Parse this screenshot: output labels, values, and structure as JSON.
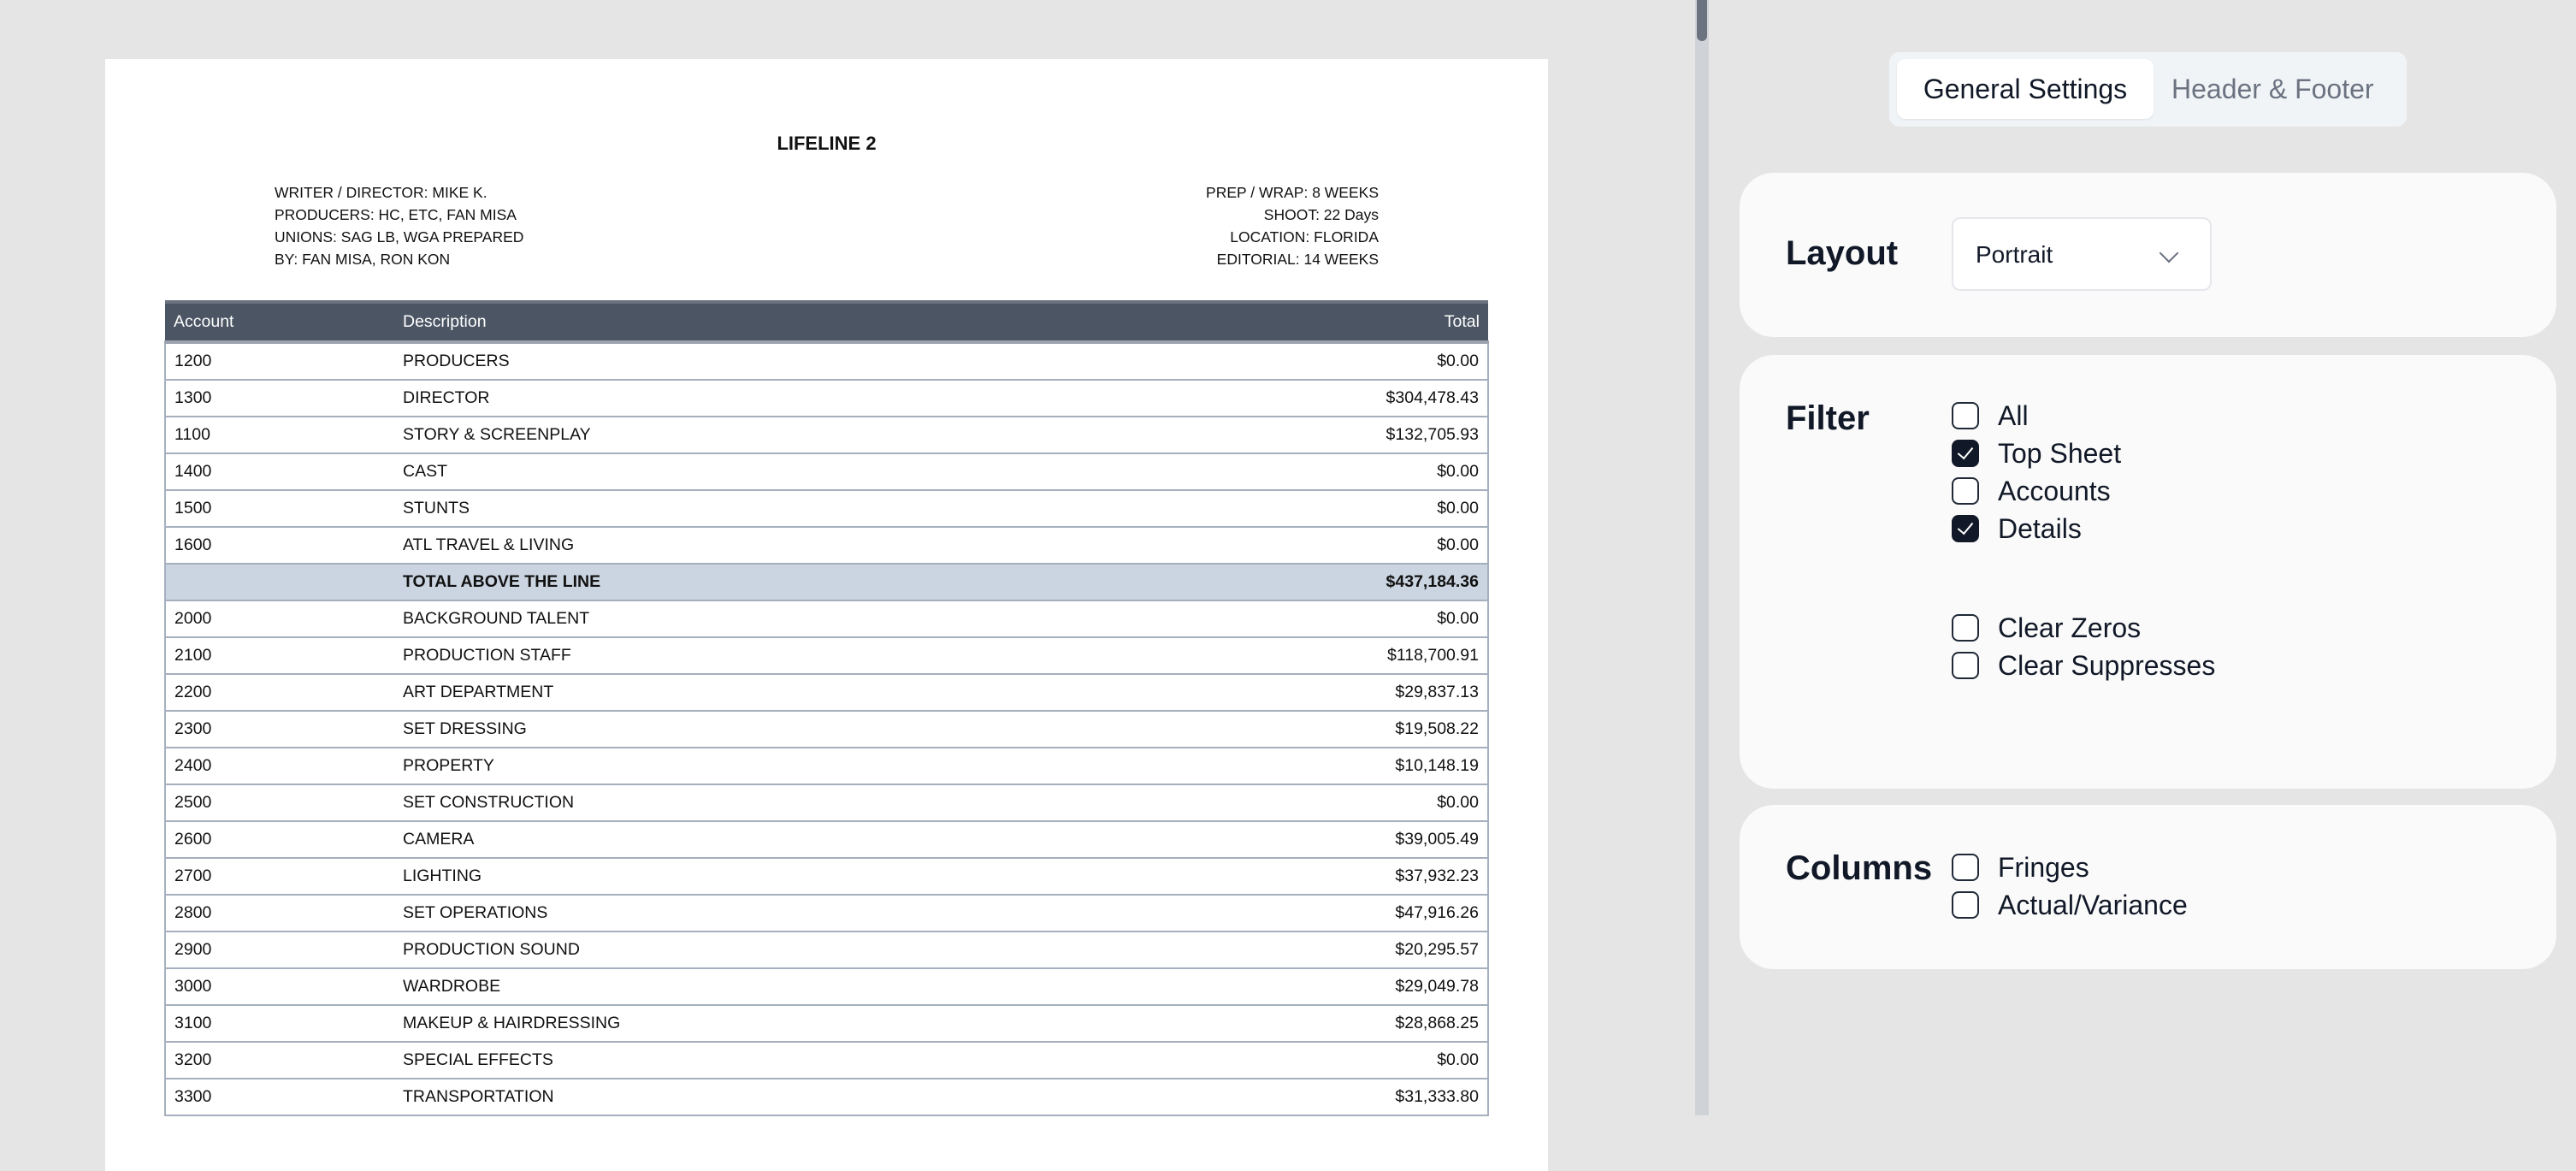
{
  "document": {
    "title": "LIFELINE 2",
    "meta_left": [
      "WRITER / DIRECTOR: MIKE K.",
      "PRODUCERS: HC, ETC, FAN MISA",
      "UNIONS: SAG LB, WGA PREPARED",
      "BY: FAN MISA, RON KON"
    ],
    "meta_right": [
      "PREP / WRAP: 8 WEEKS",
      "SHOOT: 22 Days",
      "LOCATION: FLORIDA",
      "EDITORIAL: 14 WEEKS"
    ],
    "columns": [
      "Account",
      "Description",
      "Total"
    ],
    "rows": [
      {
        "account": "1200",
        "description": "PRODUCERS",
        "total": "$0.00"
      },
      {
        "account": "1300",
        "description": "DIRECTOR",
        "total": "$304,478.43"
      },
      {
        "account": "1100",
        "description": "STORY & SCREENPLAY",
        "total": "$132,705.93"
      },
      {
        "account": "1400",
        "description": "CAST",
        "total": "$0.00"
      },
      {
        "account": "1500",
        "description": "STUNTS",
        "total": "$0.00"
      },
      {
        "account": "1600",
        "description": "ATL TRAVEL & LIVING",
        "total": "$0.00"
      },
      {
        "account": "",
        "description": "TOTAL ABOVE THE LINE",
        "total": "$437,184.36",
        "is_total": true
      },
      {
        "account": "2000",
        "description": "BACKGROUND TALENT",
        "total": "$0.00"
      },
      {
        "account": "2100",
        "description": "PRODUCTION STAFF",
        "total": "$118,700.91"
      },
      {
        "account": "2200",
        "description": "ART DEPARTMENT",
        "total": "$29,837.13"
      },
      {
        "account": "2300",
        "description": "SET DRESSING",
        "total": "$19,508.22"
      },
      {
        "account": "2400",
        "description": "PROPERTY",
        "total": "$10,148.19"
      },
      {
        "account": "2500",
        "description": "SET CONSTRUCTION",
        "total": "$0.00"
      },
      {
        "account": "2600",
        "description": "CAMERA",
        "total": "$39,005.49"
      },
      {
        "account": "2700",
        "description": "LIGHTING",
        "total": "$37,932.23"
      },
      {
        "account": "2800",
        "description": "SET OPERATIONS",
        "total": "$47,916.26"
      },
      {
        "account": "2900",
        "description": "PRODUCTION SOUND",
        "total": "$20,295.57"
      },
      {
        "account": "3000",
        "description": "WARDROBE",
        "total": "$29,049.78"
      },
      {
        "account": "3100",
        "description": "MAKEUP & HAIRDRESSING",
        "total": "$28,868.25"
      },
      {
        "account": "3200",
        "description": "SPECIAL EFFECTS",
        "total": "$0.00"
      },
      {
        "account": "3300",
        "description": "TRANSPORTATION",
        "total": "$31,333.80"
      }
    ]
  },
  "settings": {
    "tabs": [
      {
        "label": "General Settings",
        "active": true
      },
      {
        "label": "Header & Footer",
        "active": false
      }
    ],
    "layout": {
      "label": "Layout",
      "value": "Portrait"
    },
    "filter": {
      "label": "Filter",
      "options": [
        {
          "label": "All",
          "checked": false
        },
        {
          "label": "Top Sheet",
          "checked": true
        },
        {
          "label": "Accounts",
          "checked": false
        },
        {
          "label": "Details",
          "checked": true
        }
      ],
      "extra": [
        {
          "label": "Clear Zeros",
          "checked": false
        },
        {
          "label": "Clear Suppresses",
          "checked": false
        }
      ]
    },
    "columns": {
      "label": "Columns",
      "options": [
        {
          "label": "Fringes",
          "checked": false
        },
        {
          "label": "Actual/Variance",
          "checked": false
        }
      ]
    }
  },
  "colors": {
    "table_header": "#4b5563",
    "total_row": "#cbd5e1",
    "checkbox_checked": "#111827"
  }
}
